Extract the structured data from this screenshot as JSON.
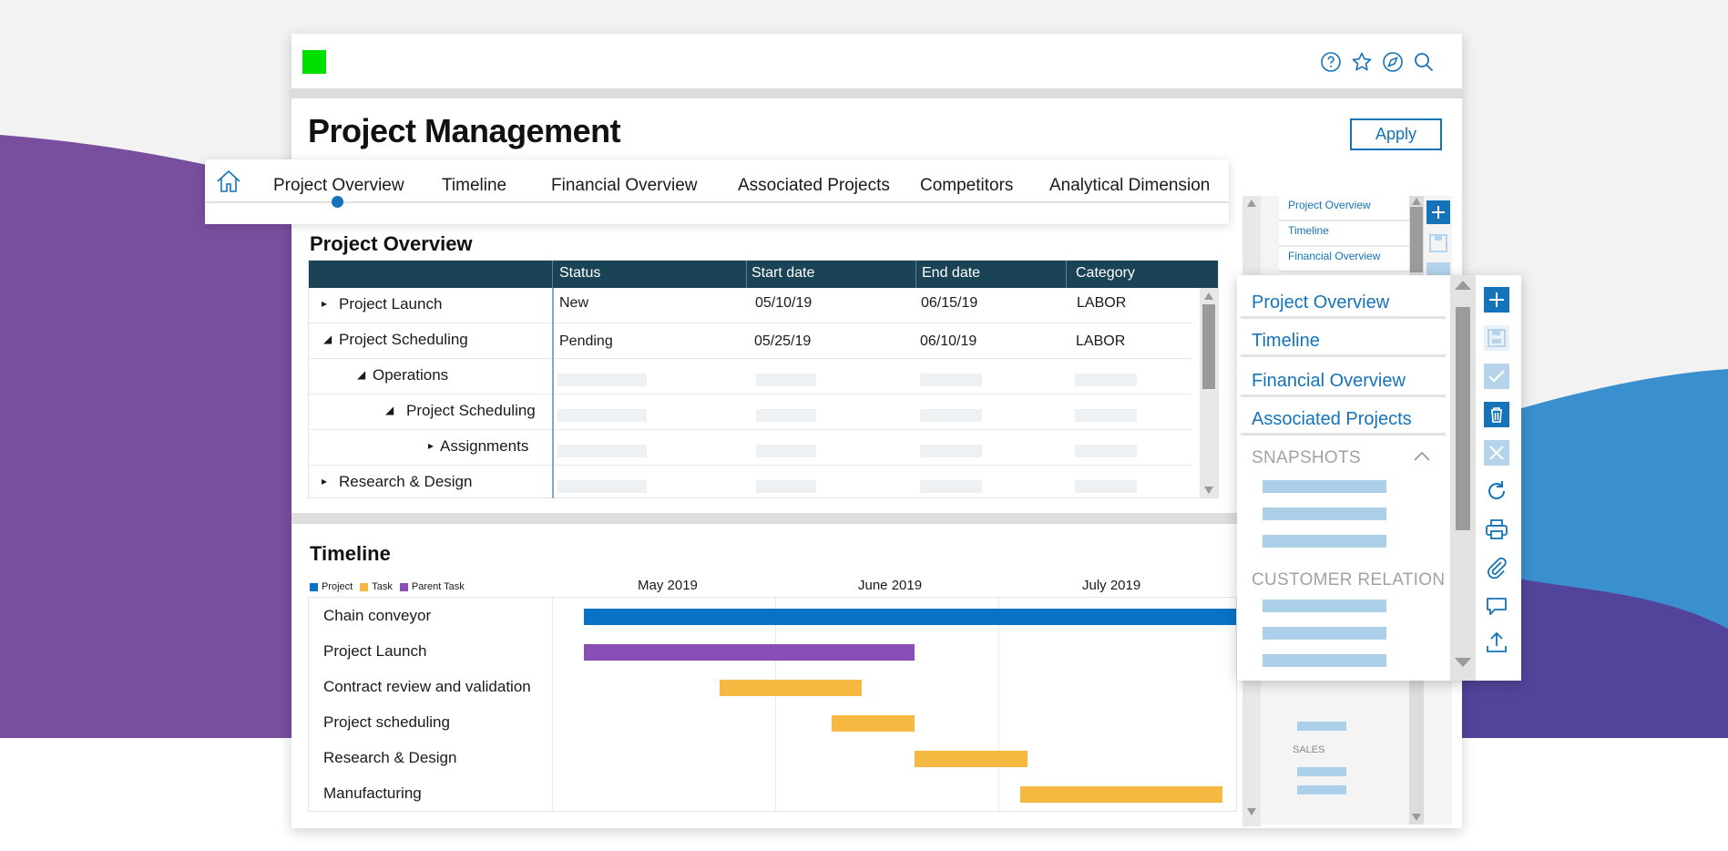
{
  "app": {
    "title": "Project Management",
    "apply_label": "Apply"
  },
  "colors": {
    "accent": "#1473b9",
    "header_dark": "#1b4356",
    "logo": "#00e000",
    "project": "#0a72c6",
    "task": "#f5b942",
    "parent_task": "#8a4fb6"
  },
  "topbar": {
    "icons": [
      "help-icon",
      "star-icon",
      "compass-icon",
      "search-icon"
    ]
  },
  "nav": {
    "tabs": [
      "Project Overview",
      "Timeline",
      "Financial Overview",
      "Associated Projects",
      "Competitors",
      "Analytical Dimension"
    ],
    "active_index": 0
  },
  "overview": {
    "title": "Project Overview",
    "columns": [
      "Status",
      "Start date",
      "End date",
      "Category"
    ],
    "rows": [
      {
        "name": "Project Launch",
        "caret": "▸",
        "status": "New",
        "start": "05/10/19",
        "end": "06/15/19",
        "category": "LABOR"
      },
      {
        "name": "Project Scheduling",
        "caret": "◢",
        "status": "Pending",
        "start": "05/25/19",
        "end": "06/10/19",
        "category": "LABOR"
      },
      {
        "name": "Operations",
        "caret": "◢"
      },
      {
        "name": "Project Scheduling",
        "caret": "◢"
      },
      {
        "name": "Assignments",
        "caret": "▸"
      },
      {
        "name": "Research & Design",
        "caret": "▸"
      }
    ]
  },
  "timeline": {
    "title": "Timeline",
    "legend": [
      "Project",
      "Task",
      "Parent Task"
    ],
    "months": [
      "May 2019",
      "June 2019",
      "July 2019"
    ],
    "tasks": [
      {
        "name": "Chain conveyor",
        "type": "Project",
        "start": "2019-05-05",
        "end": "2019-07-31"
      },
      {
        "name": "Project Launch",
        "type": "Parent Task",
        "start": "2019-05-05",
        "end": "2019-06-18"
      },
      {
        "name": "Contract review and validation",
        "type": "Task",
        "start": "2019-05-23",
        "end": "2019-06-11"
      },
      {
        "name": "Project scheduling",
        "type": "Task",
        "start": "2019-06-07",
        "end": "2019-06-18"
      },
      {
        "name": "Research & Design",
        "type": "Task",
        "start": "2019-06-18",
        "end": "2019-07-03"
      },
      {
        "name": "Manufacturing",
        "type": "Task",
        "start": "2019-07-02",
        "end": "2019-07-29"
      }
    ]
  },
  "right_panel": {
    "items": [
      "Project Overview",
      "Timeline",
      "Financial Overview"
    ],
    "label": "SALES"
  },
  "popup": {
    "items": [
      "Project Overview",
      "Timeline",
      "Financial Overview",
      "Associated Projects"
    ],
    "sections": [
      "SNAPSHOTS",
      "CUSTOMER RELATION"
    ],
    "actions": [
      "add-icon",
      "save-icon",
      "check-icon",
      "trash-icon",
      "close-icon",
      "refresh-icon",
      "print-icon",
      "attach-icon",
      "comment-icon",
      "upload-icon"
    ]
  }
}
